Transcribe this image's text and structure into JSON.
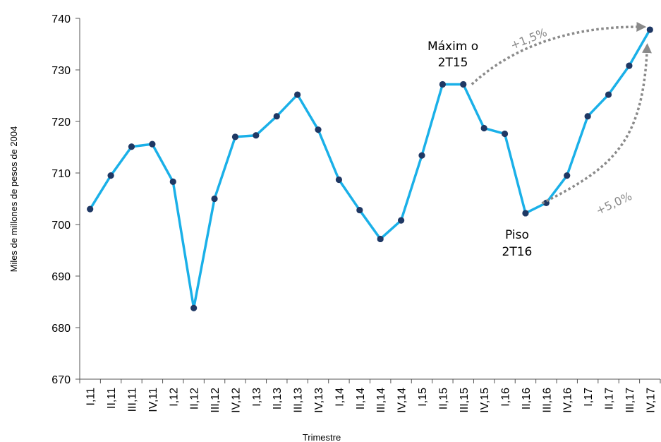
{
  "chart_data": {
    "type": "line",
    "xlabel": "Trimestre",
    "ylabel": "Miles de millones de pesos de 2004",
    "ylim": [
      670,
      740
    ],
    "yticks": [
      670,
      680,
      690,
      700,
      710,
      720,
      730,
      740
    ],
    "grid": false,
    "categories": [
      "I,11",
      "II,11",
      "III,11",
      "IV,11",
      "I,12",
      "II,12",
      "III,12",
      "IV,12",
      "I,13",
      "II,13",
      "III,13",
      "IV,13",
      "I,14",
      "II,14",
      "III,14",
      "IV,14",
      "I,15",
      "II,15",
      "III,15",
      "IV,15",
      "I,16",
      "II,16",
      "III,16",
      "IV,16",
      "I,17",
      "II,17",
      "III,17",
      "IV,17"
    ],
    "series": [
      {
        "values": [
          703.0,
          709.5,
          715.1,
          715.6,
          708.3,
          683.8,
          705.0,
          717.0,
          717.3,
          721.0,
          725.2,
          718.4,
          708.7,
          702.8,
          697.2,
          700.8,
          713.4,
          727.2,
          727.2,
          718.7,
          717.6,
          702.2,
          704.2,
          709.5,
          721.0,
          725.2,
          730.8,
          737.8
        ],
        "color": "#1ab0e8",
        "marker_color": "#1f3864"
      }
    ],
    "annotations": [
      {
        "id": "max",
        "lines": [
          "Máxim o",
          "2T15"
        ]
      },
      {
        "id": "min",
        "lines": [
          "Piso",
          "2T16"
        ]
      },
      {
        "id": "pct-max",
        "text": "+1,5%"
      },
      {
        "id": "pct-min",
        "text": "+5,0%"
      }
    ],
    "arrow_color": "#8a8a8a"
  }
}
